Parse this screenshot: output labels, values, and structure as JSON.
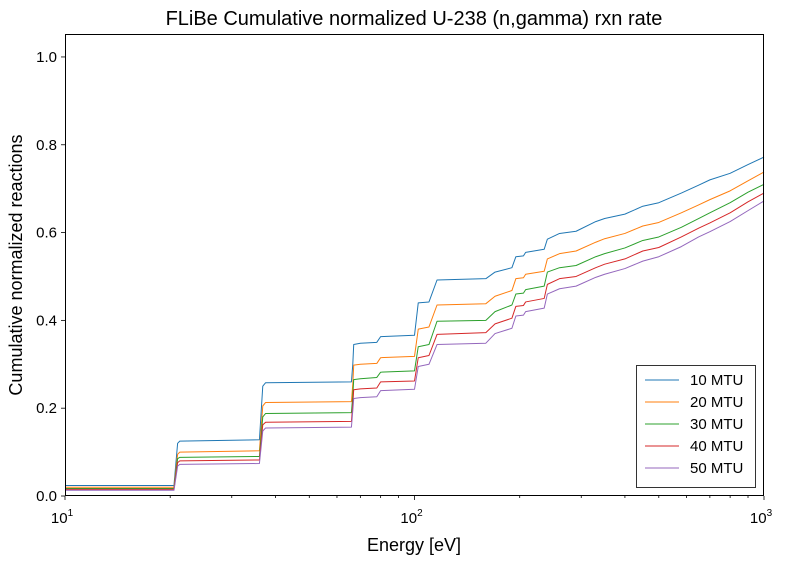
{
  "chart_data": {
    "type": "line",
    "title": "FLiBe Cumulative normalized U-238 (n,gamma) rxn rate",
    "xlabel": "Energy [eV]",
    "ylabel": "Cumulative normalized reactions",
    "xscale": "log",
    "xlim": [
      10,
      1000
    ],
    "ylim": [
      0,
      1.05
    ],
    "grid": false,
    "legend_position": "bottom-right",
    "x_ticks": [
      {
        "value": 10,
        "base": "10",
        "exp": "1"
      },
      {
        "value": 100,
        "base": "10",
        "exp": "2"
      },
      {
        "value": 1000,
        "base": "10",
        "exp": "3"
      }
    ],
    "y_ticks": [
      {
        "value": 0,
        "label": "0.0"
      },
      {
        "value": 0.2,
        "label": "0.2"
      },
      {
        "value": 0.4,
        "label": "0.4"
      },
      {
        "value": 0.6,
        "label": "0.6"
      },
      {
        "value": 0.8,
        "label": "0.8"
      },
      {
        "value": 1.0,
        "label": "1.0"
      }
    ],
    "series": [
      {
        "name": "10 MTU",
        "color": "#1f77b4",
        "points": [
          [
            10,
            0.024
          ],
          [
            20.5,
            0.024
          ],
          [
            21,
            0.12
          ],
          [
            21.3,
            0.125
          ],
          [
            36,
            0.128
          ],
          [
            36.8,
            0.25
          ],
          [
            37.5,
            0.258
          ],
          [
            66,
            0.26
          ],
          [
            66.6,
            0.3
          ],
          [
            67,
            0.345
          ],
          [
            70,
            0.348
          ],
          [
            78,
            0.35
          ],
          [
            80,
            0.363
          ],
          [
            100,
            0.366
          ],
          [
            102.5,
            0.44
          ],
          [
            110,
            0.442
          ],
          [
            116,
            0.492
          ],
          [
            160,
            0.495
          ],
          [
            170,
            0.51
          ],
          [
            190,
            0.52
          ],
          [
            195,
            0.545
          ],
          [
            205,
            0.547
          ],
          [
            208,
            0.555
          ],
          [
            235,
            0.562
          ],
          [
            240,
            0.585
          ],
          [
            260,
            0.598
          ],
          [
            290,
            0.603
          ],
          [
            330,
            0.625
          ],
          [
            350,
            0.632
          ],
          [
            400,
            0.642
          ],
          [
            450,
            0.66
          ],
          [
            500,
            0.668
          ],
          [
            580,
            0.69
          ],
          [
            650,
            0.708
          ],
          [
            700,
            0.72
          ],
          [
            800,
            0.735
          ],
          [
            900,
            0.755
          ],
          [
            1000,
            0.772
          ]
        ]
      },
      {
        "name": "20 MTU",
        "color": "#ff7f0e",
        "points": [
          [
            10,
            0.02
          ],
          [
            20.5,
            0.02
          ],
          [
            21,
            0.095
          ],
          [
            21.3,
            0.1
          ],
          [
            36,
            0.103
          ],
          [
            36.8,
            0.205
          ],
          [
            37.5,
            0.213
          ],
          [
            66,
            0.215
          ],
          [
            66.6,
            0.255
          ],
          [
            67,
            0.298
          ],
          [
            70,
            0.3
          ],
          [
            78,
            0.302
          ],
          [
            80,
            0.315
          ],
          [
            100,
            0.318
          ],
          [
            102.5,
            0.38
          ],
          [
            110,
            0.385
          ],
          [
            116,
            0.435
          ],
          [
            160,
            0.438
          ],
          [
            170,
            0.455
          ],
          [
            190,
            0.468
          ],
          [
            195,
            0.495
          ],
          [
            205,
            0.497
          ],
          [
            208,
            0.505
          ],
          [
            235,
            0.512
          ],
          [
            240,
            0.54
          ],
          [
            260,
            0.552
          ],
          [
            290,
            0.558
          ],
          [
            330,
            0.578
          ],
          [
            350,
            0.586
          ],
          [
            400,
            0.598
          ],
          [
            450,
            0.615
          ],
          [
            500,
            0.623
          ],
          [
            580,
            0.645
          ],
          [
            650,
            0.663
          ],
          [
            700,
            0.675
          ],
          [
            800,
            0.695
          ],
          [
            900,
            0.718
          ],
          [
            1000,
            0.738
          ]
        ]
      },
      {
        "name": "30 MTU",
        "color": "#2ca02c",
        "points": [
          [
            10,
            0.017
          ],
          [
            20.5,
            0.017
          ],
          [
            21,
            0.085
          ],
          [
            21.3,
            0.088
          ],
          [
            36,
            0.09
          ],
          [
            36.8,
            0.18
          ],
          [
            37.5,
            0.188
          ],
          [
            66,
            0.19
          ],
          [
            66.6,
            0.23
          ],
          [
            67,
            0.265
          ],
          [
            70,
            0.267
          ],
          [
            78,
            0.27
          ],
          [
            80,
            0.282
          ],
          [
            100,
            0.285
          ],
          [
            102.5,
            0.34
          ],
          [
            110,
            0.345
          ],
          [
            116,
            0.398
          ],
          [
            160,
            0.4
          ],
          [
            170,
            0.42
          ],
          [
            190,
            0.435
          ],
          [
            195,
            0.46
          ],
          [
            205,
            0.462
          ],
          [
            208,
            0.47
          ],
          [
            235,
            0.478
          ],
          [
            240,
            0.51
          ],
          [
            260,
            0.52
          ],
          [
            290,
            0.525
          ],
          [
            330,
            0.545
          ],
          [
            350,
            0.552
          ],
          [
            400,
            0.565
          ],
          [
            450,
            0.582
          ],
          [
            500,
            0.59
          ],
          [
            580,
            0.612
          ],
          [
            650,
            0.632
          ],
          [
            700,
            0.645
          ],
          [
            800,
            0.668
          ],
          [
            900,
            0.692
          ],
          [
            1000,
            0.71
          ]
        ]
      },
      {
        "name": "40 MTU",
        "color": "#d62728",
        "points": [
          [
            10,
            0.015
          ],
          [
            20.5,
            0.015
          ],
          [
            21,
            0.076
          ],
          [
            21.3,
            0.08
          ],
          [
            36,
            0.082
          ],
          [
            36.8,
            0.162
          ],
          [
            37.5,
            0.168
          ],
          [
            66,
            0.17
          ],
          [
            66.6,
            0.21
          ],
          [
            67,
            0.242
          ],
          [
            70,
            0.244
          ],
          [
            78,
            0.246
          ],
          [
            80,
            0.26
          ],
          [
            100,
            0.262
          ],
          [
            102.5,
            0.315
          ],
          [
            110,
            0.32
          ],
          [
            116,
            0.368
          ],
          [
            160,
            0.372
          ],
          [
            170,
            0.392
          ],
          [
            190,
            0.405
          ],
          [
            195,
            0.432
          ],
          [
            205,
            0.434
          ],
          [
            208,
            0.442
          ],
          [
            235,
            0.45
          ],
          [
            240,
            0.482
          ],
          [
            260,
            0.495
          ],
          [
            290,
            0.5
          ],
          [
            330,
            0.52
          ],
          [
            350,
            0.528
          ],
          [
            400,
            0.54
          ],
          [
            450,
            0.558
          ],
          [
            500,
            0.566
          ],
          [
            580,
            0.59
          ],
          [
            650,
            0.61
          ],
          [
            700,
            0.622
          ],
          [
            800,
            0.645
          ],
          [
            900,
            0.67
          ],
          [
            1000,
            0.69
          ]
        ]
      },
      {
        "name": "50 MTU",
        "color": "#9467bd",
        "points": [
          [
            10,
            0.013
          ],
          [
            20.5,
            0.013
          ],
          [
            21,
            0.068
          ],
          [
            21.3,
            0.072
          ],
          [
            36,
            0.074
          ],
          [
            36.8,
            0.148
          ],
          [
            37.5,
            0.155
          ],
          [
            66,
            0.157
          ],
          [
            66.6,
            0.195
          ],
          [
            67,
            0.222
          ],
          [
            70,
            0.224
          ],
          [
            78,
            0.226
          ],
          [
            80,
            0.24
          ],
          [
            100,
            0.243
          ],
          [
            102.5,
            0.295
          ],
          [
            110,
            0.3
          ],
          [
            116,
            0.345
          ],
          [
            160,
            0.348
          ],
          [
            170,
            0.37
          ],
          [
            190,
            0.382
          ],
          [
            195,
            0.41
          ],
          [
            205,
            0.412
          ],
          [
            208,
            0.42
          ],
          [
            235,
            0.428
          ],
          [
            240,
            0.46
          ],
          [
            260,
            0.472
          ],
          [
            290,
            0.478
          ],
          [
            330,
            0.498
          ],
          [
            350,
            0.505
          ],
          [
            400,
            0.518
          ],
          [
            450,
            0.535
          ],
          [
            500,
            0.545
          ],
          [
            580,
            0.568
          ],
          [
            650,
            0.59
          ],
          [
            700,
            0.602
          ],
          [
            800,
            0.625
          ],
          [
            900,
            0.65
          ],
          [
            1000,
            0.672
          ]
        ]
      }
    ]
  }
}
